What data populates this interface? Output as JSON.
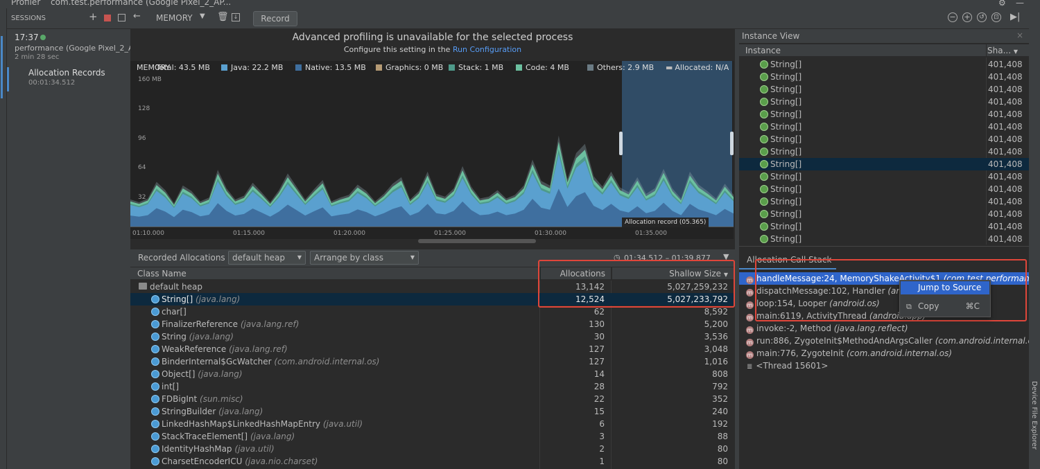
{
  "titlebar": {
    "profiler_label": "Profiler",
    "session_title": "com.test.performance (Google Pixel_2_AP..."
  },
  "toolbar": {
    "sessions_label": "SESSIONS",
    "memory_label": "MEMORY",
    "record_label": "Record"
  },
  "sidebar": {
    "session_time": "17:37",
    "session_name": "performance (Google Pixel_2_A...",
    "session_duration": "2 min 28 sec",
    "record_title": "Allocation Records",
    "record_time": "00:01:34.512"
  },
  "banner": {
    "title": "Advanced profiling is unavailable for the selected process",
    "subtitle_prefix": "Configure this setting in the",
    "subtitle_link": "Run Configuration"
  },
  "legend": {
    "memory": "MEMORY",
    "total": "Total: 43.5 MB",
    "java": "Java: 22.2 MB",
    "native": "Native: 13.5 MB",
    "graphics": "Graphics: 0 MB",
    "stack": "Stack: 1 MB",
    "code": "Code: 4 MB",
    "others": "Others: 2.9 MB",
    "allocated": "Allocated: N/A"
  },
  "chart_data": {
    "type": "area",
    "ylabel_unit": "MB",
    "y_ticks": [
      "160 MB",
      "128",
      "96",
      "64",
      "32"
    ],
    "x_ticks": [
      "01:10.000",
      "01:15.000",
      "01:20.000",
      "01:25.000",
      "01:30.000",
      "01:35.000"
    ],
    "ylim": [
      0,
      160
    ],
    "selection_label": "Allocation record (05.365)",
    "series_colors": {
      "native": "#4a7bb0",
      "java": "#5aa0cf",
      "stack": "#4e9a8a",
      "code": "#6cc0a0",
      "others": "#8fa6b0"
    },
    "total": [
      30,
      27,
      31,
      49,
      40,
      26,
      45,
      39,
      28,
      32,
      62,
      42,
      30,
      34,
      48,
      38,
      27,
      40,
      58,
      44,
      30,
      41,
      51,
      28,
      32,
      35,
      46,
      39,
      28,
      36,
      47,
      54,
      30,
      39,
      60,
      36,
      33,
      42,
      66,
      44,
      31,
      33,
      40,
      31,
      35,
      45,
      73,
      50,
      45,
      99,
      52,
      80,
      90,
      55,
      44,
      60,
      43,
      38,
      54,
      36,
      42,
      63,
      42,
      31,
      60,
      46,
      39,
      31,
      47,
      35
    ]
  },
  "recorded": {
    "label": "Recorded Allocations",
    "heap": "default heap",
    "arrange": "Arrange by class",
    "time_range": "01:34.512 – 01:39.877"
  },
  "table": {
    "col_class": "Class Name",
    "col_alloc": "Allocations",
    "col_size": "Shallow Size",
    "heap_row": {
      "name": "default heap",
      "alloc": "13,142",
      "size": "5,027,259,232"
    },
    "rows": [
      {
        "name": "String[]",
        "pkg": "(java.lang)",
        "alloc": "12,524",
        "size": "5,027,233,792"
      },
      {
        "name": "char[]",
        "pkg": "",
        "alloc": "62",
        "size": "8,592"
      },
      {
        "name": "FinalizerReference",
        "pkg": "(java.lang.ref)",
        "alloc": "130",
        "size": "5,200"
      },
      {
        "name": "String",
        "pkg": "(java.lang)",
        "alloc": "30",
        "size": "3,536"
      },
      {
        "name": "WeakReference",
        "pkg": "(java.lang.ref)",
        "alloc": "127",
        "size": "3,048"
      },
      {
        "name": "BinderInternal$GcWatcher",
        "pkg": "(com.android.internal.os)",
        "alloc": "127",
        "size": "1,016"
      },
      {
        "name": "Object[]",
        "pkg": "(java.lang)",
        "alloc": "14",
        "size": "808"
      },
      {
        "name": "int[]",
        "pkg": "",
        "alloc": "28",
        "size": "792"
      },
      {
        "name": "FDBigInt",
        "pkg": "(sun.misc)",
        "alloc": "22",
        "size": "352"
      },
      {
        "name": "StringBuilder",
        "pkg": "(java.lang)",
        "alloc": "15",
        "size": "240"
      },
      {
        "name": "LinkedHashMap$LinkedHashMapEntry",
        "pkg": "(java.util)",
        "alloc": "6",
        "size": "192"
      },
      {
        "name": "StackTraceElement[]",
        "pkg": "(java.lang)",
        "alloc": "3",
        "size": "88"
      },
      {
        "name": "IdentityHashMap",
        "pkg": "(java.util)",
        "alloc": "2",
        "size": "80"
      },
      {
        "name": "CharsetEncoderICU",
        "pkg": "(java.nio.charset)",
        "alloc": "1",
        "size": "80"
      }
    ]
  },
  "instance_view": {
    "title": "Instance View",
    "col_instance": "Instance",
    "col_size": "Sha...",
    "items": [
      {
        "name": "String[]",
        "size": "401,408"
      },
      {
        "name": "String[]",
        "size": "401,408"
      },
      {
        "name": "String[]",
        "size": "401,408"
      },
      {
        "name": "String[]",
        "size": "401,408"
      },
      {
        "name": "String[]",
        "size": "401,408"
      },
      {
        "name": "String[]",
        "size": "401,408"
      },
      {
        "name": "String[]",
        "size": "401,408"
      },
      {
        "name": "String[]",
        "size": "401,408"
      },
      {
        "name": "String[]",
        "size": "401,408"
      },
      {
        "name": "String[]",
        "size": "401,408"
      },
      {
        "name": "String[]",
        "size": "401,408"
      },
      {
        "name": "String[]",
        "size": "401,408"
      },
      {
        "name": "String[]",
        "size": "401,408"
      },
      {
        "name": "String[]",
        "size": "401,408"
      },
      {
        "name": "String[]",
        "size": "401,408"
      }
    ]
  },
  "callstack": {
    "title": "Allocation Call Stack",
    "frames": [
      {
        "text": "handleMessage:24, MemoryShakeActivity$1",
        "pkg": "(com.test.performance.m"
      },
      {
        "text": "dispatchMessage:102, Handler",
        "pkg": "(andr"
      },
      {
        "text": "loop:154, Looper",
        "pkg": "(android.os)"
      },
      {
        "text": "main:6119, ActivityThread",
        "pkg": "(android.app)"
      },
      {
        "text": "invoke:-2, Method",
        "pkg": "(java.lang.reflect)"
      },
      {
        "text": "run:886, ZygoteInit$MethodAndArgsCaller",
        "pkg": "(com.android.internal.os)"
      },
      {
        "text": "main:776, ZygoteInit",
        "pkg": "(com.android.internal.os)"
      }
    ],
    "thread": "<Thread 15601>"
  },
  "context_menu": {
    "jump": "Jump to Source",
    "copy": "Copy",
    "copy_shortcut": "⌘C"
  },
  "side_tools": {
    "right_label": "Device File Explorer"
  }
}
